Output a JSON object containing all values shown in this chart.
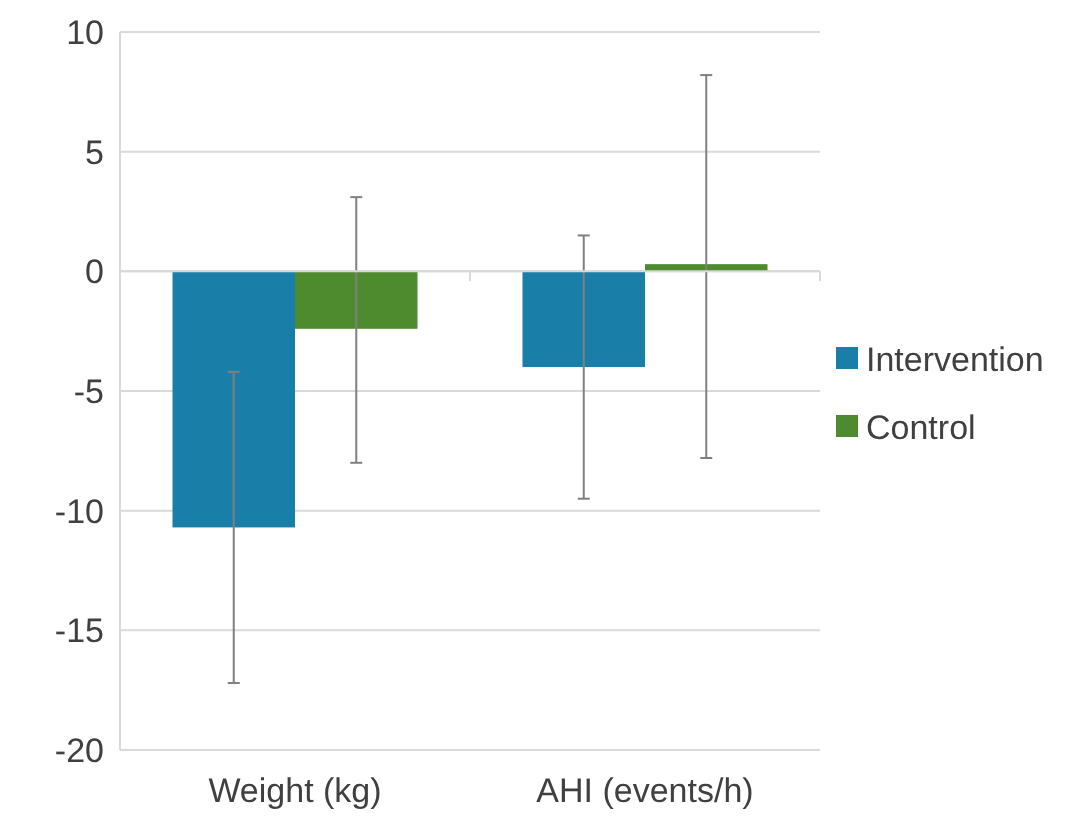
{
  "chart_data": {
    "type": "bar",
    "categories": [
      "Weight (kg)",
      "AHI (events/h)"
    ],
    "series": [
      {
        "name": "Intervention",
        "color": "#1a7fa8",
        "values": [
          -10.7,
          -4.0
        ],
        "errors": [
          [
            -17.2,
            -4.2
          ],
          [
            -9.5,
            1.5
          ]
        ]
      },
      {
        "name": "Control",
        "color": "#4e8a2e",
        "values": [
          -2.4,
          0.3
        ],
        "errors": [
          [
            -8.0,
            3.1
          ],
          [
            -7.8,
            8.2
          ]
        ]
      }
    ],
    "ylim": [
      -20,
      10
    ],
    "yticks": [
      -20,
      -15,
      -10,
      -5,
      0,
      5,
      10
    ],
    "grid": "y",
    "legend": "right"
  }
}
